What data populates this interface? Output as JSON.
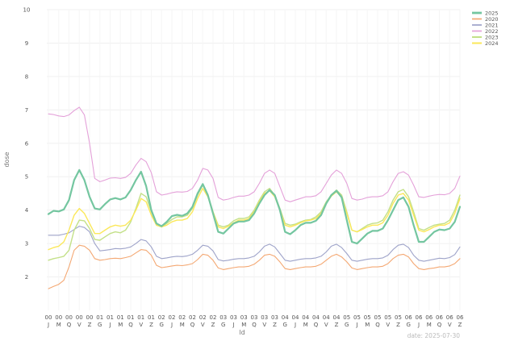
{
  "chart_data": {
    "type": "line",
    "xlabel": "ld",
    "ylabel": "dose",
    "ylim": [
      1,
      10
    ],
    "yticks": [
      2,
      3,
      4,
      5,
      6,
      7,
      8,
      9,
      10
    ],
    "grid": true,
    "legend_position": "top-right",
    "footer": "date: 2025-07-30",
    "x_ticks": [
      {
        "top": "00",
        "bottom": "J"
      },
      {
        "top": "00",
        "bottom": "M"
      },
      {
        "top": "00",
        "bottom": "Q"
      },
      {
        "top": "00",
        "bottom": "V"
      },
      {
        "top": "00",
        "bottom": "Z"
      },
      {
        "top": "01",
        "bottom": "G"
      },
      {
        "top": "01",
        "bottom": "J"
      },
      {
        "top": "01",
        "bottom": "M"
      },
      {
        "top": "01",
        "bottom": "Q"
      },
      {
        "top": "01",
        "bottom": "V"
      },
      {
        "top": "01",
        "bottom": "Z"
      },
      {
        "top": "02",
        "bottom": "G"
      },
      {
        "top": "02",
        "bottom": "J"
      },
      {
        "top": "02",
        "bottom": "M"
      },
      {
        "top": "02",
        "bottom": "Q"
      },
      {
        "top": "02",
        "bottom": "V"
      },
      {
        "top": "02",
        "bottom": "Z"
      },
      {
        "top": "03",
        "bottom": "G"
      },
      {
        "top": "03",
        "bottom": "J"
      },
      {
        "top": "03",
        "bottom": "M"
      },
      {
        "top": "03",
        "bottom": "Q"
      },
      {
        "top": "03",
        "bottom": "V"
      },
      {
        "top": "03",
        "bottom": "Z"
      },
      {
        "top": "04",
        "bottom": "G"
      },
      {
        "top": "04",
        "bottom": "J"
      },
      {
        "top": "04",
        "bottom": "M"
      },
      {
        "top": "04",
        "bottom": "Q"
      },
      {
        "top": "04",
        "bottom": "V"
      },
      {
        "top": "04",
        "bottom": "Z"
      },
      {
        "top": "05",
        "bottom": "G"
      },
      {
        "top": "05",
        "bottom": "J"
      },
      {
        "top": "05",
        "bottom": "M"
      },
      {
        "top": "05",
        "bottom": "Q"
      },
      {
        "top": "05",
        "bottom": "V"
      },
      {
        "top": "05",
        "bottom": "Z"
      },
      {
        "top": "06",
        "bottom": "G"
      },
      {
        "top": "06",
        "bottom": "J"
      },
      {
        "top": "06",
        "bottom": "M"
      },
      {
        "top": "06",
        "bottom": "Q"
      },
      {
        "top": "06",
        "bottom": "V"
      },
      {
        "top": "06",
        "bottom": "Z"
      }
    ],
    "x_tick_positions": [
      0,
      2,
      4,
      6,
      8,
      10,
      12,
      14,
      16,
      18,
      20,
      22,
      24,
      26,
      28,
      30,
      32,
      34,
      36,
      38,
      40,
      42,
      44,
      46,
      48,
      50,
      52,
      54,
      56,
      58,
      60,
      62,
      64,
      66,
      68,
      70,
      72,
      74,
      76,
      78,
      80
    ],
    "series": [
      {
        "name": "2025",
        "color": "#74c6a0",
        "width": 2.2,
        "values": [
          3.88,
          3.98,
          3.96,
          4.02,
          4.3,
          4.9,
          5.2,
          4.9,
          4.4,
          4.05,
          4.02,
          4.18,
          4.32,
          4.36,
          4.32,
          4.38,
          4.6,
          4.9,
          5.15,
          4.72,
          4.0,
          3.6,
          3.52,
          3.65,
          3.82,
          3.86,
          3.83,
          3.9,
          4.1,
          4.5,
          4.78,
          4.45,
          3.9,
          3.35,
          3.3,
          3.45,
          3.6,
          3.66,
          3.66,
          3.7,
          3.9,
          4.2,
          4.45,
          4.6,
          4.45,
          4.0,
          3.35,
          3.28,
          3.4,
          3.55,
          3.62,
          3.62,
          3.68,
          3.85,
          4.2,
          4.45,
          4.58,
          4.38,
          3.7,
          3.05,
          3.0,
          3.15,
          3.3,
          3.38,
          3.38,
          3.45,
          3.7,
          4.0,
          4.3,
          4.38,
          4.1,
          3.55,
          3.05,
          3.05,
          3.2,
          3.35,
          3.42,
          3.4,
          3.45,
          3.65,
          4.1
        ]
      },
      {
        "name": "2020",
        "color": "#f4a873",
        "width": 1.1,
        "values": [
          1.65,
          1.72,
          1.78,
          1.9,
          2.3,
          2.8,
          2.95,
          2.92,
          2.8,
          2.55,
          2.5,
          2.52,
          2.55,
          2.56,
          2.55,
          2.58,
          2.62,
          2.72,
          2.82,
          2.8,
          2.65,
          2.35,
          2.28,
          2.3,
          2.33,
          2.35,
          2.34,
          2.36,
          2.4,
          2.52,
          2.68,
          2.65,
          2.5,
          2.27,
          2.22,
          2.25,
          2.28,
          2.3,
          2.3,
          2.32,
          2.38,
          2.5,
          2.65,
          2.68,
          2.62,
          2.45,
          2.25,
          2.22,
          2.25,
          2.28,
          2.3,
          2.3,
          2.32,
          2.38,
          2.5,
          2.62,
          2.68,
          2.6,
          2.45,
          2.27,
          2.22,
          2.25,
          2.28,
          2.3,
          2.3,
          2.32,
          2.4,
          2.55,
          2.65,
          2.68,
          2.6,
          2.4,
          2.25,
          2.22,
          2.25,
          2.27,
          2.3,
          2.3,
          2.33,
          2.4,
          2.55
        ]
      },
      {
        "name": "2021",
        "color": "#9ea3c9",
        "width": 1.1,
        "values": [
          3.25,
          3.25,
          3.25,
          3.28,
          3.32,
          3.42,
          3.52,
          3.48,
          3.35,
          3.0,
          2.78,
          2.8,
          2.82,
          2.85,
          2.84,
          2.86,
          2.9,
          3.0,
          3.12,
          3.08,
          2.9,
          2.62,
          2.55,
          2.57,
          2.6,
          2.62,
          2.61,
          2.63,
          2.68,
          2.8,
          2.95,
          2.92,
          2.78,
          2.52,
          2.48,
          2.5,
          2.53,
          2.55,
          2.55,
          2.57,
          2.62,
          2.75,
          2.92,
          2.98,
          2.9,
          2.7,
          2.5,
          2.47,
          2.5,
          2.53,
          2.55,
          2.55,
          2.57,
          2.62,
          2.75,
          2.92,
          2.98,
          2.88,
          2.7,
          2.5,
          2.47,
          2.5,
          2.53,
          2.55,
          2.55,
          2.57,
          2.65,
          2.82,
          2.95,
          2.98,
          2.88,
          2.65,
          2.5,
          2.47,
          2.5,
          2.53,
          2.56,
          2.55,
          2.58,
          2.67,
          2.9
        ]
      },
      {
        "name": "2022",
        "color": "#e4a1d9",
        "width": 1.1,
        "values": [
          6.88,
          6.86,
          6.82,
          6.8,
          6.85,
          6.98,
          7.08,
          6.85,
          6.0,
          4.95,
          4.85,
          4.9,
          4.96,
          4.97,
          4.95,
          4.98,
          5.1,
          5.35,
          5.55,
          5.45,
          5.12,
          4.55,
          4.45,
          4.48,
          4.52,
          4.55,
          4.54,
          4.56,
          4.65,
          4.9,
          5.25,
          5.2,
          4.95,
          4.38,
          4.3,
          4.33,
          4.38,
          4.42,
          4.42,
          4.45,
          4.55,
          4.8,
          5.1,
          5.2,
          5.1,
          4.7,
          4.3,
          4.25,
          4.3,
          4.35,
          4.4,
          4.4,
          4.43,
          4.55,
          4.8,
          5.05,
          5.2,
          5.1,
          4.8,
          4.35,
          4.3,
          4.33,
          4.38,
          4.4,
          4.4,
          4.43,
          4.55,
          4.85,
          5.1,
          5.15,
          5.05,
          4.75,
          4.4,
          4.38,
          4.42,
          4.45,
          4.47,
          4.46,
          4.5,
          4.65,
          5.02
        ]
      },
      {
        "name": "2023",
        "color": "#c3e088",
        "width": 1.4,
        "values": [
          2.5,
          2.55,
          2.58,
          2.62,
          2.8,
          3.4,
          3.7,
          3.68,
          3.45,
          3.12,
          3.1,
          3.2,
          3.3,
          3.35,
          3.32,
          3.4,
          3.65,
          4.05,
          4.5,
          4.4,
          3.95,
          3.55,
          3.5,
          3.6,
          3.72,
          3.8,
          3.8,
          3.85,
          4.05,
          4.45,
          4.75,
          4.45,
          3.95,
          3.55,
          3.5,
          3.55,
          3.68,
          3.75,
          3.75,
          3.8,
          4.0,
          4.3,
          4.55,
          4.65,
          4.45,
          4.05,
          3.6,
          3.55,
          3.58,
          3.65,
          3.7,
          3.72,
          3.8,
          3.95,
          4.25,
          4.45,
          4.6,
          4.45,
          3.95,
          3.4,
          3.35,
          3.45,
          3.55,
          3.6,
          3.62,
          3.7,
          3.95,
          4.3,
          4.55,
          4.62,
          4.4,
          3.95,
          3.45,
          3.4,
          3.48,
          3.55,
          3.58,
          3.6,
          3.7,
          4.0,
          4.45
        ]
      },
      {
        "name": "2024",
        "color": "#fbe85a",
        "width": 1.4,
        "values": [
          2.82,
          2.88,
          2.92,
          3.05,
          3.4,
          3.85,
          4.05,
          3.9,
          3.6,
          3.3,
          3.3,
          3.4,
          3.5,
          3.55,
          3.52,
          3.55,
          3.7,
          4.0,
          4.35,
          4.25,
          3.85,
          3.55,
          3.5,
          3.55,
          3.65,
          3.7,
          3.7,
          3.75,
          3.95,
          4.35,
          4.65,
          4.4,
          3.95,
          3.5,
          3.45,
          3.52,
          3.62,
          3.7,
          3.7,
          3.75,
          3.95,
          4.25,
          4.5,
          4.58,
          4.4,
          4.0,
          3.55,
          3.5,
          3.55,
          3.62,
          3.68,
          3.7,
          3.75,
          3.9,
          4.2,
          4.42,
          4.55,
          4.38,
          3.9,
          3.4,
          3.35,
          3.42,
          3.5,
          3.55,
          3.55,
          3.62,
          3.85,
          4.2,
          4.45,
          4.5,
          4.3,
          3.85,
          3.4,
          3.35,
          3.42,
          3.5,
          3.55,
          3.55,
          3.62,
          3.9,
          4.35
        ]
      }
    ]
  }
}
